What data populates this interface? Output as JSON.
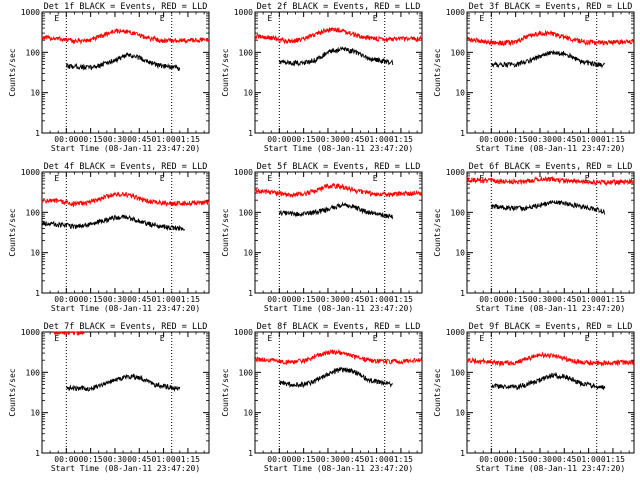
{
  "figure": {
    "background": "#ffffff",
    "colors": {
      "events": "#000000",
      "lld": "#ff0000",
      "axis": "#000000"
    }
  },
  "chart_data": [
    {
      "type": "line",
      "title": "Det 1f BLACK = Events, RED = LLD",
      "xlabel": "Start Time (08-Jan-11 23:47:20)",
      "ylabel": "Counts/sec",
      "y_scale": "log",
      "ylim": [
        1,
        1000
      ],
      "y_ticks": [
        "1",
        "10",
        "100",
        "1000"
      ],
      "x_range_minutes": [
        -15,
        88
      ],
      "x_ticks": [
        "00:00",
        "00:15",
        "00:30",
        "00:45",
        "01:00",
        "01:15"
      ],
      "markers": [
        {
          "label": "E",
          "x_min": 0
        },
        {
          "label": "E",
          "x_min": 65
        }
      ],
      "series": [
        {
          "color": "#ff0000",
          "x_min": [
            -15,
            -5,
            5,
            15,
            22,
            30,
            38,
            48,
            58,
            68,
            78,
            88
          ],
          "values": [
            230,
            220,
            190,
            200,
            260,
            340,
            330,
            240,
            200,
            195,
            200,
            210
          ]
        },
        {
          "color": "#000000",
          "x_min": [
            0,
            5,
            15,
            22,
            30,
            38,
            45,
            55,
            65,
            70
          ],
          "values": [
            45,
            45,
            42,
            50,
            65,
            85,
            75,
            50,
            42,
            40
          ]
        }
      ]
    },
    {
      "type": "line",
      "title": "Det 2f BLACK = Events, RED = LLD",
      "xlabel": "Start Time (08-Jan-11 23:47:20)",
      "ylabel": "Counts/sec",
      "y_scale": "log",
      "ylim": [
        1,
        1000
      ],
      "y_ticks": [
        "1",
        "10",
        "100",
        "1000"
      ],
      "x_range_minutes": [
        -15,
        88
      ],
      "x_ticks": [
        "00:00",
        "00:15",
        "00:30",
        "00:45",
        "01:00",
        "01:15"
      ],
      "markers": [
        {
          "label": "E",
          "x_min": 0
        },
        {
          "label": "E",
          "x_min": 65
        }
      ],
      "series": [
        {
          "color": "#ff0000",
          "x_min": [
            -15,
            -5,
            5,
            15,
            22,
            30,
            38,
            48,
            58,
            68,
            78,
            88
          ],
          "values": [
            250,
            230,
            190,
            210,
            280,
            370,
            360,
            260,
            220,
            210,
            215,
            220
          ]
        },
        {
          "color": "#000000",
          "x_min": [
            0,
            5,
            15,
            22,
            30,
            38,
            45,
            55,
            65,
            70
          ],
          "values": [
            60,
            55,
            55,
            65,
            100,
            120,
            110,
            70,
            60,
            55
          ]
        }
      ]
    },
    {
      "type": "line",
      "title": "Det 3f BLACK = Events, RED = LLD",
      "xlabel": "Start Time (08-Jan-11 23:47:20)",
      "ylabel": "Counts/sec",
      "y_scale": "log",
      "ylim": [
        1,
        1000
      ],
      "y_ticks": [
        "1",
        "10",
        "100",
        "1000"
      ],
      "x_range_minutes": [
        -15,
        88
      ],
      "x_ticks": [
        "00:00",
        "00:15",
        "00:30",
        "00:45",
        "01:00",
        "01:15"
      ],
      "markers": [
        {
          "label": "E",
          "x_min": 0
        },
        {
          "label": "E",
          "x_min": 65
        }
      ],
      "series": [
        {
          "color": "#ff0000",
          "x_min": [
            -15,
            -5,
            5,
            15,
            22,
            30,
            38,
            48,
            58,
            68,
            78,
            88
          ],
          "values": [
            210,
            190,
            170,
            180,
            240,
            300,
            290,
            220,
            180,
            175,
            180,
            190
          ]
        },
        {
          "color": "#000000",
          "x_min": [
            0,
            5,
            15,
            22,
            30,
            38,
            45,
            55,
            65,
            70
          ],
          "values": [
            50,
            50,
            50,
            60,
            80,
            100,
            95,
            60,
            50,
            48
          ]
        }
      ]
    },
    {
      "type": "line",
      "title": "Det 4f BLACK = Events, RED = LLD",
      "xlabel": "Start Time (08-Jan-11 23:47:20)",
      "ylabel": "Counts/sec",
      "y_scale": "log",
      "ylim": [
        1,
        1000
      ],
      "y_ticks": [
        "1",
        "10",
        "100",
        "1000"
      ],
      "x_range_minutes": [
        -15,
        88
      ],
      "x_ticks": [
        "00:00",
        "00:15",
        "00:30",
        "00:45",
        "01:00",
        "01:15"
      ],
      "markers": [
        {
          "label": "E",
          "x_min": 0
        },
        {
          "label": "E",
          "x_min": 65
        }
      ],
      "series": [
        {
          "color": "#ff0000",
          "x_min": [
            -15,
            -5,
            5,
            15,
            22,
            30,
            38,
            48,
            58,
            68,
            78,
            88
          ],
          "values": [
            200,
            190,
            160,
            180,
            230,
            280,
            270,
            200,
            170,
            165,
            170,
            175
          ]
        },
        {
          "color": "#000000",
          "x_min": [
            -15,
            -5,
            5,
            15,
            22,
            30,
            38,
            48,
            58,
            68,
            73
          ],
          "values": [
            55,
            50,
            45,
            50,
            60,
            75,
            75,
            55,
            45,
            40,
            38
          ]
        }
      ]
    },
    {
      "type": "line",
      "title": "Det 5f BLACK = Events, RED = LLD",
      "xlabel": "Start Time (08-Jan-11 23:47:20)",
      "ylabel": "Counts/sec",
      "y_scale": "log",
      "ylim": [
        1,
        1000
      ],
      "y_ticks": [
        "1",
        "10",
        "100",
        "1000"
      ],
      "x_range_minutes": [
        -15,
        88
      ],
      "x_ticks": [
        "00:00",
        "00:15",
        "00:30",
        "00:45",
        "01:00",
        "01:15"
      ],
      "markers": [
        {
          "label": "E",
          "x_min": 0
        },
        {
          "label": "E",
          "x_min": 65
        }
      ],
      "series": [
        {
          "color": "#ff0000",
          "x_min": [
            -15,
            -5,
            5,
            15,
            22,
            30,
            38,
            48,
            58,
            68,
            78,
            88
          ],
          "values": [
            340,
            320,
            270,
            280,
            350,
            450,
            440,
            340,
            290,
            280,
            290,
            300
          ]
        },
        {
          "color": "#000000",
          "x_min": [
            0,
            5,
            15,
            22,
            30,
            38,
            45,
            55,
            65,
            70
          ],
          "values": [
            100,
            95,
            90,
            100,
            120,
            150,
            140,
            100,
            85,
            80
          ]
        }
      ]
    },
    {
      "type": "line",
      "title": "Det 6f BLACK = Events, RED = LLD",
      "xlabel": "Start Time (08-Jan-11 23:47:20)",
      "ylabel": "Counts/sec",
      "y_scale": "log",
      "ylim": [
        1,
        1000
      ],
      "y_ticks": [
        "1",
        "10",
        "100",
        "1000"
      ],
      "x_range_minutes": [
        -15,
        88
      ],
      "x_ticks": [
        "00:00",
        "00:15",
        "00:30",
        "00:45",
        "01:00",
        "01:15"
      ],
      "markers": [
        {
          "label": "E",
          "x_min": 0
        },
        {
          "label": "E",
          "x_min": 65
        }
      ],
      "series": [
        {
          "color": "#ff0000",
          "x_min": [
            -15,
            -5,
            5,
            15,
            22,
            30,
            38,
            48,
            58,
            68,
            78,
            88
          ],
          "values": [
            650,
            620,
            580,
            580,
            600,
            680,
            660,
            590,
            560,
            550,
            560,
            580
          ]
        },
        {
          "color": "#000000",
          "x_min": [
            0,
            5,
            15,
            22,
            30,
            38,
            45,
            55,
            65,
            70
          ],
          "values": [
            140,
            135,
            125,
            130,
            150,
            180,
            170,
            140,
            120,
            100
          ]
        }
      ]
    },
    {
      "type": "line",
      "title": "Det 7f BLACK = Events, RED = LLD",
      "xlabel": "Start Time (08-Jan-11 23:47:20)",
      "ylabel": "Counts/sec",
      "y_scale": "log",
      "ylim": [
        1,
        1000
      ],
      "y_ticks": [
        "1",
        "10",
        "100",
        "1000"
      ],
      "x_range_minutes": [
        -15,
        88
      ],
      "x_ticks": [
        "00:00",
        "00:15",
        "00:30",
        "00:45",
        "01:00",
        "01:15"
      ],
      "markers": [
        {
          "label": "E",
          "x_min": 0
        },
        {
          "label": "E",
          "x_min": 65
        }
      ],
      "series": [
        {
          "color": "#ff0000",
          "x_min": [
            -8,
            -3,
            2,
            7,
            11
          ],
          "values": [
            1000,
            980,
            1000,
            990,
            1000
          ]
        },
        {
          "color": "#000000",
          "x_min": [
            0,
            5,
            15,
            22,
            30,
            38,
            45,
            55,
            65,
            70
          ],
          "values": [
            42,
            40,
            40,
            50,
            65,
            80,
            75,
            50,
            42,
            40
          ]
        }
      ]
    },
    {
      "type": "line",
      "title": "Det 8f BLACK = Events, RED = LLD",
      "xlabel": "Start Time (08-Jan-11 23:47:20)",
      "ylabel": "Counts/sec",
      "y_scale": "log",
      "ylim": [
        1,
        1000
      ],
      "y_ticks": [
        "1",
        "10",
        "100",
        "1000"
      ],
      "x_range_minutes": [
        -15,
        88
      ],
      "x_ticks": [
        "00:00",
        "00:15",
        "00:30",
        "00:45",
        "01:00",
        "01:15"
      ],
      "markers": [
        {
          "label": "E",
          "x_min": 0
        },
        {
          "label": "E",
          "x_min": 65
        }
      ],
      "series": [
        {
          "color": "#ff0000",
          "x_min": [
            -15,
            -5,
            5,
            15,
            22,
            30,
            38,
            48,
            58,
            68,
            78,
            88
          ],
          "values": [
            210,
            200,
            180,
            190,
            250,
            320,
            310,
            230,
            190,
            185,
            190,
            200
          ]
        },
        {
          "color": "#000000",
          "x_min": [
            0,
            5,
            15,
            22,
            30,
            38,
            45,
            55,
            65,
            70
          ],
          "values": [
            55,
            52,
            50,
            60,
            90,
            120,
            110,
            65,
            55,
            50
          ]
        }
      ]
    },
    {
      "type": "line",
      "title": "Det 9f BLACK = Events, RED = LLD",
      "xlabel": "Start Time (08-Jan-11 23:47:20)",
      "ylabel": "Counts/sec",
      "y_scale": "log",
      "ylim": [
        1,
        1000
      ],
      "y_ticks": [
        "1",
        "10",
        "100",
        "1000"
      ],
      "x_range_minutes": [
        -15,
        88
      ],
      "x_ticks": [
        "00:00",
        "00:15",
        "00:30",
        "00:45",
        "01:00",
        "01:15"
      ],
      "markers": [
        {
          "label": "E",
          "x_min": 0
        },
        {
          "label": "E",
          "x_min": 65
        }
      ],
      "series": [
        {
          "color": "#ff0000",
          "x_min": [
            -15,
            -5,
            5,
            15,
            22,
            30,
            38,
            48,
            58,
            68,
            78,
            88
          ],
          "values": [
            200,
            190,
            170,
            175,
            220,
            270,
            260,
            200,
            175,
            170,
            175,
            180
          ]
        },
        {
          "color": "#000000",
          "x_min": [
            0,
            5,
            15,
            22,
            30,
            38,
            45,
            55,
            65,
            70
          ],
          "values": [
            45,
            45,
            42,
            50,
            65,
            85,
            80,
            55,
            45,
            42
          ]
        }
      ]
    }
  ]
}
